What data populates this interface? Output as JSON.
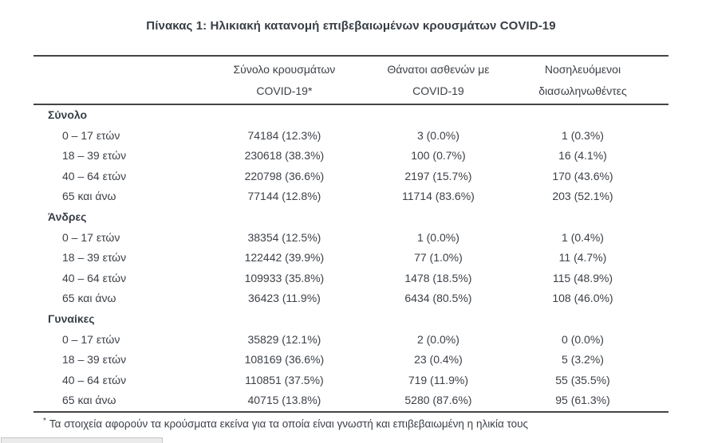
{
  "page": {
    "title": "Πίνακας 1: Ηλικιακή κατανομή επιβεβαιωμένων κρουσμάτων COVID-19"
  },
  "table": {
    "columns": {
      "cases": {
        "line1": "Σύνολο κρουσμάτων",
        "line2": "COVID-19*"
      },
      "deaths": {
        "line1": "Θάνατοι ασθενών με",
        "line2": "COVID-19"
      },
      "intubated": {
        "line1": "Νοσηλευόμενοι",
        "line2": "διασωληνωθέντες"
      }
    },
    "sections": [
      {
        "name": "Σύνολο",
        "rows": [
          {
            "label": "0 – 17 ετών",
            "cases": "74184 (12.3%)",
            "deaths": "3 (0.0%)",
            "intubated": "1 (0.3%)"
          },
          {
            "label": "18 – 39 ετών",
            "cases": "230618 (38.3%)",
            "deaths": "100 (0.7%)",
            "intubated": "16 (4.1%)"
          },
          {
            "label": "40 – 64 ετών",
            "cases": "220798 (36.6%)",
            "deaths": "2197 (15.7%)",
            "intubated": "170 (43.6%)"
          },
          {
            "label": "65 και άνω",
            "cases": "77144 (12.8%)",
            "deaths": "11714 (83.6%)",
            "intubated": "203 (52.1%)"
          }
        ]
      },
      {
        "name": "Άνδρες",
        "rows": [
          {
            "label": "0 – 17 ετών",
            "cases": "38354 (12.5%)",
            "deaths": "1 (0.0%)",
            "intubated": "1 (0.4%)"
          },
          {
            "label": "18 – 39 ετών",
            "cases": "122442 (39.9%)",
            "deaths": "77 (1.0%)",
            "intubated": "11 (4.7%)"
          },
          {
            "label": "40 – 64 ετών",
            "cases": "109933 (35.8%)",
            "deaths": "1478 (18.5%)",
            "intubated": "115 (48.9%)"
          },
          {
            "label": "65 και άνω",
            "cases": "36423 (11.9%)",
            "deaths": "6434 (80.5%)",
            "intubated": "108 (46.0%)"
          }
        ]
      },
      {
        "name": "Γυναίκες",
        "rows": [
          {
            "label": "0 – 17 ετών",
            "cases": "35829 (12.1%)",
            "deaths": "2 (0.0%)",
            "intubated": "0 (0.0%)"
          },
          {
            "label": "18 – 39 ετών",
            "cases": "108169 (36.6%)",
            "deaths": "23 (0.4%)",
            "intubated": "5 (3.2%)"
          },
          {
            "label": "40 – 64 ετών",
            "cases": "110851 (37.5%)",
            "deaths": "719 (11.9%)",
            "intubated": "55 (35.5%)"
          },
          {
            "label": "65 και άνω",
            "cases": "40715 (13.8%)",
            "deaths": "5280 (87.6%)",
            "intubated": "95 (61.3%)"
          }
        ]
      }
    ],
    "footnote": {
      "marker": "*",
      "text": "Τα στοιχεία αφορούν τα κρούσματα εκείνα για τα οποία είναι γνωστή και επιβεβαιωμένη η ηλικία τους"
    }
  },
  "colors": {
    "text": "#3c4147",
    "border": "#454545",
    "background": "#ffffff",
    "partial_bar_fill": "#ebebeb",
    "partial_bar_border": "#c6c6c6"
  }
}
